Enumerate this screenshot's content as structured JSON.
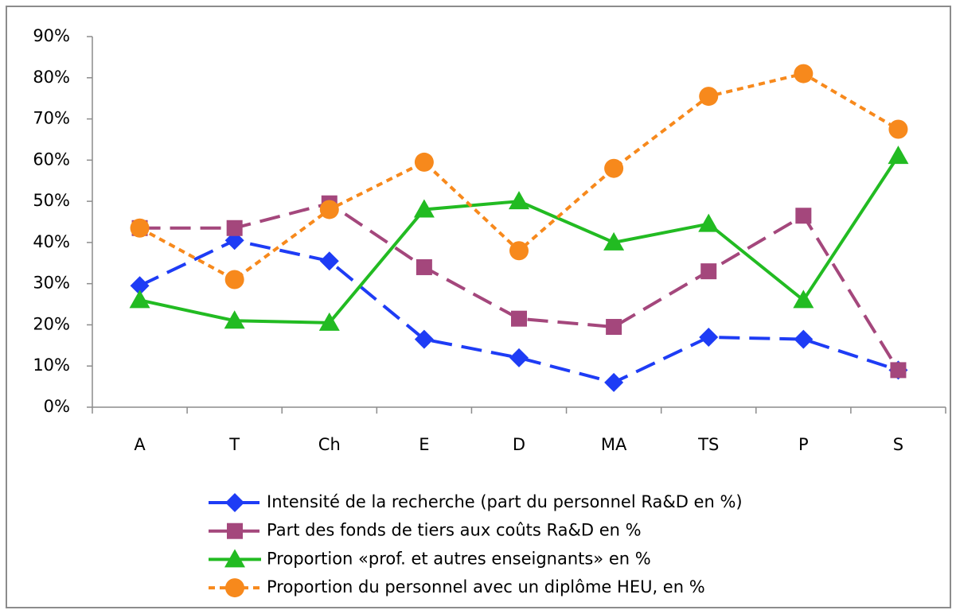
{
  "chart_data": {
    "type": "line",
    "categories": [
      "A",
      "T",
      "Ch",
      "E",
      "D",
      "MA",
      "TS",
      "P",
      "S"
    ],
    "series": [
      {
        "name": "Intensité de la recherche (part du personnel Ra&D en %)",
        "color": "#1e3cf5",
        "marker": "diamond",
        "dash": "long",
        "values": [
          29.5,
          40.5,
          35.5,
          16.5,
          12,
          6,
          17,
          16.5,
          9
        ]
      },
      {
        "name": "Part des fonds de tiers aux coûts Ra&D en %",
        "color": "#a4477c",
        "marker": "square",
        "dash": "long",
        "values": [
          43.5,
          43.5,
          49.5,
          34,
          21.5,
          19.5,
          33,
          46.5,
          9
        ]
      },
      {
        "name": "Proportion «prof. et autres enseignants» en %",
        "color": "#22bb22",
        "marker": "triangle",
        "dash": "solid",
        "values": [
          26,
          21,
          20.5,
          48,
          50,
          40,
          44.5,
          26,
          61
        ]
      },
      {
        "name": "Proportion du personnel avec un diplôme HEU, en %",
        "color": "#f7891c",
        "marker": "circle",
        "dash": "short",
        "values": [
          43.5,
          31,
          48,
          59.5,
          38,
          58,
          75.5,
          81,
          67.5
        ]
      }
    ],
    "ylim": [
      0,
      90
    ],
    "yticks": [
      {
        "value": 0,
        "label": "0%"
      },
      {
        "value": 10,
        "label": "10%"
      },
      {
        "value": 20,
        "label": "20%"
      },
      {
        "value": 30,
        "label": "30%"
      },
      {
        "value": 40,
        "label": "40%"
      },
      {
        "value": 50,
        "label": "50%"
      },
      {
        "value": 60,
        "label": "60%"
      },
      {
        "value": 70,
        "label": "70%"
      },
      {
        "value": 80,
        "label": "80%"
      },
      {
        "value": 90,
        "label": "90%"
      }
    ],
    "grid": false,
    "legend": "bottom"
  }
}
